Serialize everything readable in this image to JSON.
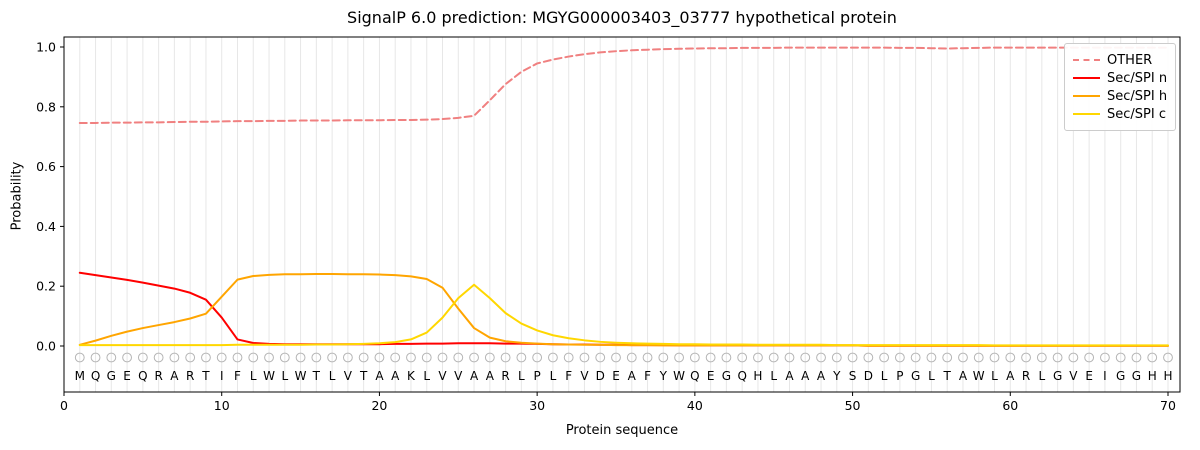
{
  "chart_data": {
    "type": "line",
    "title": "SignalP 6.0 prediction: MGYG000003403_03777 hypothetical protein",
    "xlabel": "Protein sequence",
    "ylabel": "Probability",
    "x_ticks": [
      0,
      10,
      20,
      30,
      40,
      50,
      60,
      70
    ],
    "y_ticks": [
      0.0,
      0.2,
      0.4,
      0.6,
      0.8,
      1.0
    ],
    "xlim": [
      0,
      70.8
    ],
    "ylim": [
      -0.155,
      1.035
    ],
    "grid": "vertical-per-residue",
    "grid_color": "#e7e7e7",
    "legend_position": "upper-right",
    "x_start": 1,
    "sequence": [
      "M",
      "Q",
      "G",
      "E",
      "Q",
      "R",
      "A",
      "R",
      "T",
      "I",
      "F",
      "L",
      "W",
      "L",
      "W",
      "T",
      "L",
      "V",
      "T",
      "A",
      "A",
      "K",
      "L",
      "V",
      "V",
      "A",
      "A",
      "R",
      "L",
      "P",
      "L",
      "F",
      "V",
      "D",
      "E",
      "A",
      "F",
      "Y",
      "W",
      "Q",
      "E",
      "G",
      "Q",
      "H",
      "L",
      "A",
      "A",
      "A",
      "Y",
      "S",
      "D",
      "L",
      "P",
      "G",
      "L",
      "T",
      "A",
      "W",
      "L",
      "A",
      "R",
      "L",
      "G",
      "V",
      "E",
      "I",
      "G",
      "G",
      "H",
      "H"
    ],
    "series": [
      {
        "name": "OTHER",
        "color": "#f08080",
        "style": "dashed",
        "values": [
          0.746,
          0.746,
          0.747,
          0.747,
          0.748,
          0.748,
          0.749,
          0.75,
          0.75,
          0.751,
          0.752,
          0.752,
          0.753,
          0.753,
          0.754,
          0.754,
          0.754,
          0.755,
          0.755,
          0.755,
          0.756,
          0.756,
          0.757,
          0.759,
          0.763,
          0.77,
          0.822,
          0.876,
          0.917,
          0.945,
          0.958,
          0.968,
          0.976,
          0.982,
          0.986,
          0.989,
          0.991,
          0.993,
          0.994,
          0.995,
          0.996,
          0.996,
          0.997,
          0.997,
          0.997,
          0.998,
          0.998,
          0.998,
          0.998,
          0.998,
          0.998,
          0.998,
          0.997,
          0.997,
          0.996,
          0.995,
          0.996,
          0.997,
          0.998,
          0.998,
          0.998,
          0.998,
          0.998,
          0.998,
          0.998,
          0.998,
          0.998,
          0.998,
          0.998,
          0.998
        ]
      },
      {
        "name": "Sec/SPI n",
        "color": "#ff0000",
        "style": "solid",
        "values": [
          0.245,
          0.237,
          0.229,
          0.221,
          0.212,
          0.202,
          0.192,
          0.178,
          0.155,
          0.095,
          0.022,
          0.01,
          0.007,
          0.006,
          0.006,
          0.006,
          0.006,
          0.006,
          0.006,
          0.006,
          0.007,
          0.007,
          0.008,
          0.008,
          0.009,
          0.009,
          0.009,
          0.008,
          0.008,
          0.007,
          0.006,
          0.005,
          0.005,
          0.004,
          0.004,
          0.003,
          0.003,
          0.003,
          0.002,
          0.002,
          0.002,
          0.002,
          0.002,
          0.002,
          0.002,
          0.002,
          0.002,
          0.002,
          0.002,
          0.002,
          0.001,
          0.001,
          0.001,
          0.001,
          0.001,
          0.001,
          0.001,
          0.001,
          0.001,
          0.001,
          0.001,
          0.001,
          0.001,
          0.001,
          0.001,
          0.001,
          0.001,
          0.001,
          0.001,
          0.001
        ]
      },
      {
        "name": "Sec/SPI h",
        "color": "#ffa500",
        "style": "solid",
        "values": [
          0.004,
          0.018,
          0.034,
          0.048,
          0.06,
          0.07,
          0.08,
          0.092,
          0.108,
          0.165,
          0.222,
          0.234,
          0.238,
          0.24,
          0.24,
          0.241,
          0.241,
          0.24,
          0.24,
          0.239,
          0.237,
          0.233,
          0.224,
          0.195,
          0.125,
          0.06,
          0.028,
          0.016,
          0.011,
          0.008,
          0.006,
          0.005,
          0.004,
          0.004,
          0.003,
          0.003,
          0.003,
          0.002,
          0.002,
          0.002,
          0.002,
          0.002,
          0.002,
          0.002,
          0.002,
          0.002,
          0.002,
          0.002,
          0.002,
          0.002,
          0.001,
          0.001,
          0.001,
          0.001,
          0.001,
          0.001,
          0.001,
          0.001,
          0.001,
          0.001,
          0.001,
          0.001,
          0.001,
          0.001,
          0.001,
          0.001,
          0.001,
          0.001,
          0.001,
          0.001
        ]
      },
      {
        "name": "Sec/SPI c",
        "color": "#ffd700",
        "style": "solid",
        "values": [
          0.003,
          0.003,
          0.003,
          0.003,
          0.003,
          0.003,
          0.003,
          0.003,
          0.003,
          0.003,
          0.004,
          0.004,
          0.004,
          0.004,
          0.004,
          0.005,
          0.005,
          0.006,
          0.007,
          0.009,
          0.013,
          0.022,
          0.045,
          0.095,
          0.16,
          0.205,
          0.16,
          0.11,
          0.075,
          0.052,
          0.036,
          0.026,
          0.019,
          0.014,
          0.011,
          0.009,
          0.008,
          0.007,
          0.006,
          0.006,
          0.005,
          0.005,
          0.005,
          0.004,
          0.004,
          0.004,
          0.004,
          0.004,
          0.003,
          0.003,
          0.003,
          0.003,
          0.003,
          0.003,
          0.003,
          0.003,
          0.003,
          0.003,
          0.002,
          0.002,
          0.002,
          0.002,
          0.002,
          0.002,
          0.002,
          0.002,
          0.002,
          0.002,
          0.002,
          0.002
        ]
      }
    ]
  }
}
